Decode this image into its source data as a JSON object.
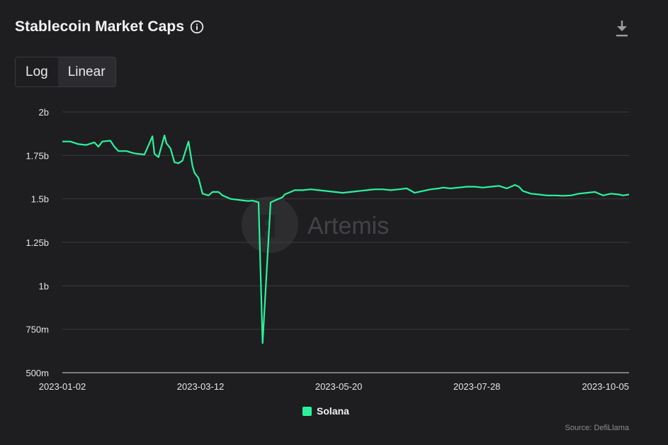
{
  "header": {
    "title": "Stablecoin Market Caps",
    "info_icon": "info-circle-icon",
    "download_icon": "download-icon"
  },
  "scale_toggle": {
    "options": [
      "Log",
      "Linear"
    ],
    "selected": "Linear"
  },
  "watermark": "Artemis",
  "source": "Source: DefiLlama",
  "colors": {
    "background": "#1e1e21",
    "series": "#2bf29a",
    "grid": "#3b3b40",
    "axis_text": "#e6e6e6"
  },
  "chart_data": {
    "type": "line",
    "title": "Stablecoin Market Caps",
    "xlabel": "",
    "ylabel": "",
    "ylim": [
      500000000,
      2000000000
    ],
    "yticks": [
      500000000,
      750000000,
      1000000000,
      1250000000,
      1500000000,
      1750000000,
      2000000000
    ],
    "ytick_labels": [
      "500m",
      "750m",
      "1b",
      "1.25b",
      "1.5b",
      "1.75b",
      "2b"
    ],
    "xlim": [
      "2023-01-02",
      "2023-10-12"
    ],
    "xtick_labels": [
      "2023-01-02",
      "2023-03-12",
      "2023-05-20",
      "2023-07-28",
      "2023-10-05"
    ],
    "grid": true,
    "legend_position": "bottom-center",
    "series": [
      {
        "name": "Solana",
        "color": "#2bf29a",
        "x": [
          "2023-01-02",
          "2023-01-06",
          "2023-01-10",
          "2023-01-14",
          "2023-01-18",
          "2023-01-20",
          "2023-01-22",
          "2023-01-26",
          "2023-01-28",
          "2023-01-30",
          "2023-02-03",
          "2023-02-06",
          "2023-02-08",
          "2023-02-12",
          "2023-02-16",
          "2023-02-17",
          "2023-02-19",
          "2023-02-22",
          "2023-02-23",
          "2023-02-25",
          "2023-02-27",
          "2023-03-01",
          "2023-03-03",
          "2023-03-06",
          "2023-03-08",
          "2023-03-09",
          "2023-03-11",
          "2023-03-13",
          "2023-03-16",
          "2023-03-18",
          "2023-03-21",
          "2023-03-23",
          "2023-03-25",
          "2023-03-27",
          "2023-04-03",
          "2023-04-05",
          "2023-04-07",
          "2023-04-10",
          "2023-04-12",
          "2023-04-16",
          "2023-04-18",
          "2023-04-20",
          "2023-04-22",
          "2023-04-23",
          "2023-04-24",
          "2023-04-26",
          "2023-04-28",
          "2023-05-02",
          "2023-05-06",
          "2023-05-10",
          "2023-05-14",
          "2023-05-18",
          "2023-05-22",
          "2023-05-26",
          "2023-05-30",
          "2023-06-03",
          "2023-06-07",
          "2023-06-11",
          "2023-06-15",
          "2023-06-19",
          "2023-06-23",
          "2023-06-27",
          "2023-07-01",
          "2023-07-05",
          "2023-07-09",
          "2023-07-11",
          "2023-07-15",
          "2023-07-19",
          "2023-07-23",
          "2023-07-27",
          "2023-07-31",
          "2023-08-04",
          "2023-08-08",
          "2023-08-12",
          "2023-08-16",
          "2023-08-18",
          "2023-08-20",
          "2023-08-24",
          "2023-08-28",
          "2023-09-01",
          "2023-09-05",
          "2023-09-09",
          "2023-09-13",
          "2023-09-17",
          "2023-09-21",
          "2023-09-25",
          "2023-09-29",
          "2023-10-03",
          "2023-10-07",
          "2023-10-09",
          "2023-10-12"
        ],
        "values": [
          1830000000,
          1830000000,
          1815000000,
          1810000000,
          1825000000,
          1800000000,
          1830000000,
          1835000000,
          1800000000,
          1775000000,
          1775000000,
          1765000000,
          1760000000,
          1755000000,
          1860000000,
          1760000000,
          1740000000,
          1865000000,
          1820000000,
          1790000000,
          1710000000,
          1705000000,
          1720000000,
          1830000000,
          1690000000,
          1650000000,
          1620000000,
          1530000000,
          1520000000,
          1540000000,
          1540000000,
          1520000000,
          1510000000,
          1500000000,
          1490000000,
          1488000000,
          1490000000,
          1480000000,
          670000000,
          1480000000,
          1490000000,
          1500000000,
          1510000000,
          1525000000,
          1530000000,
          1540000000,
          1550000000,
          1550000000,
          1555000000,
          1550000000,
          1545000000,
          1540000000,
          1535000000,
          1540000000,
          1545000000,
          1550000000,
          1555000000,
          1555000000,
          1550000000,
          1555000000,
          1560000000,
          1535000000,
          1545000000,
          1555000000,
          1560000000,
          1565000000,
          1560000000,
          1565000000,
          1570000000,
          1570000000,
          1565000000,
          1570000000,
          1575000000,
          1560000000,
          1580000000,
          1570000000,
          1545000000,
          1530000000,
          1525000000,
          1520000000,
          1520000000,
          1518000000,
          1520000000,
          1530000000,
          1535000000,
          1540000000,
          1520000000,
          1530000000,
          1525000000,
          1520000000,
          1525000000
        ]
      }
    ]
  }
}
